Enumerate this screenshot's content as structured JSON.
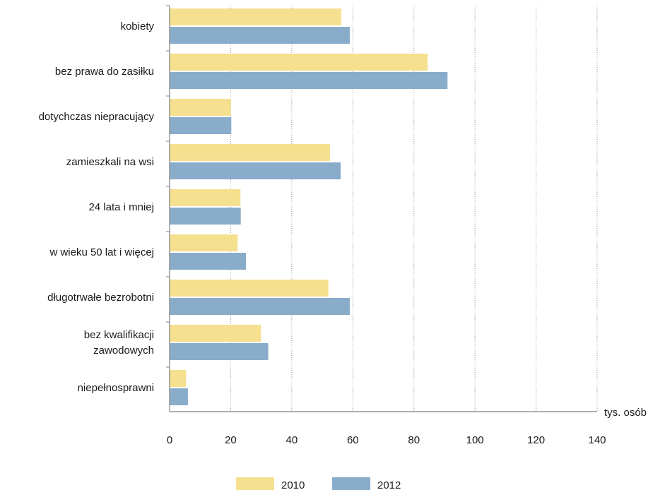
{
  "chart_data": {
    "type": "bar",
    "orientation": "horizontal",
    "categories": [
      "kobiety",
      "bez prawa do zasiłku",
      "dotychczas niepracujący",
      "zamieszkali na wsi",
      "24 lata i mniej",
      "w wieku 50 lat i więcej",
      "długotrwałe bezrobotni",
      "bez kwalifikacji zawodowych",
      "niepełnosprawni"
    ],
    "category_lines": [
      [
        "kobiety"
      ],
      [
        "bez prawa do zasiłku"
      ],
      [
        "dotychczas niepracujący"
      ],
      [
        "zamieszkali na wsi"
      ],
      [
        "24 lata i mniej"
      ],
      [
        "w wieku 50 lat i więcej"
      ],
      [
        "długotrwałe bezrobotni"
      ],
      [
        "bez kwalifikacji",
        "zawodowych"
      ],
      [
        "niepełnosprawni"
      ]
    ],
    "series": [
      {
        "name": "2010",
        "color": "#f5e08f",
        "values": [
          56.2,
          84.5,
          20.1,
          52.5,
          23.2,
          22.3,
          52.0,
          29.9,
          5.4
        ]
      },
      {
        "name": "2012",
        "color": "#8aaccb",
        "values": [
          59.0,
          91.0,
          20.2,
          56.0,
          23.3,
          25.0,
          59.0,
          32.3,
          6.0
        ]
      }
    ],
    "xlabel": "tys. osób",
    "xlim": [
      0,
      140
    ],
    "xticks": [
      0,
      20,
      40,
      60,
      80,
      100,
      120,
      140
    ],
    "grid": true,
    "legend": "bottom"
  }
}
